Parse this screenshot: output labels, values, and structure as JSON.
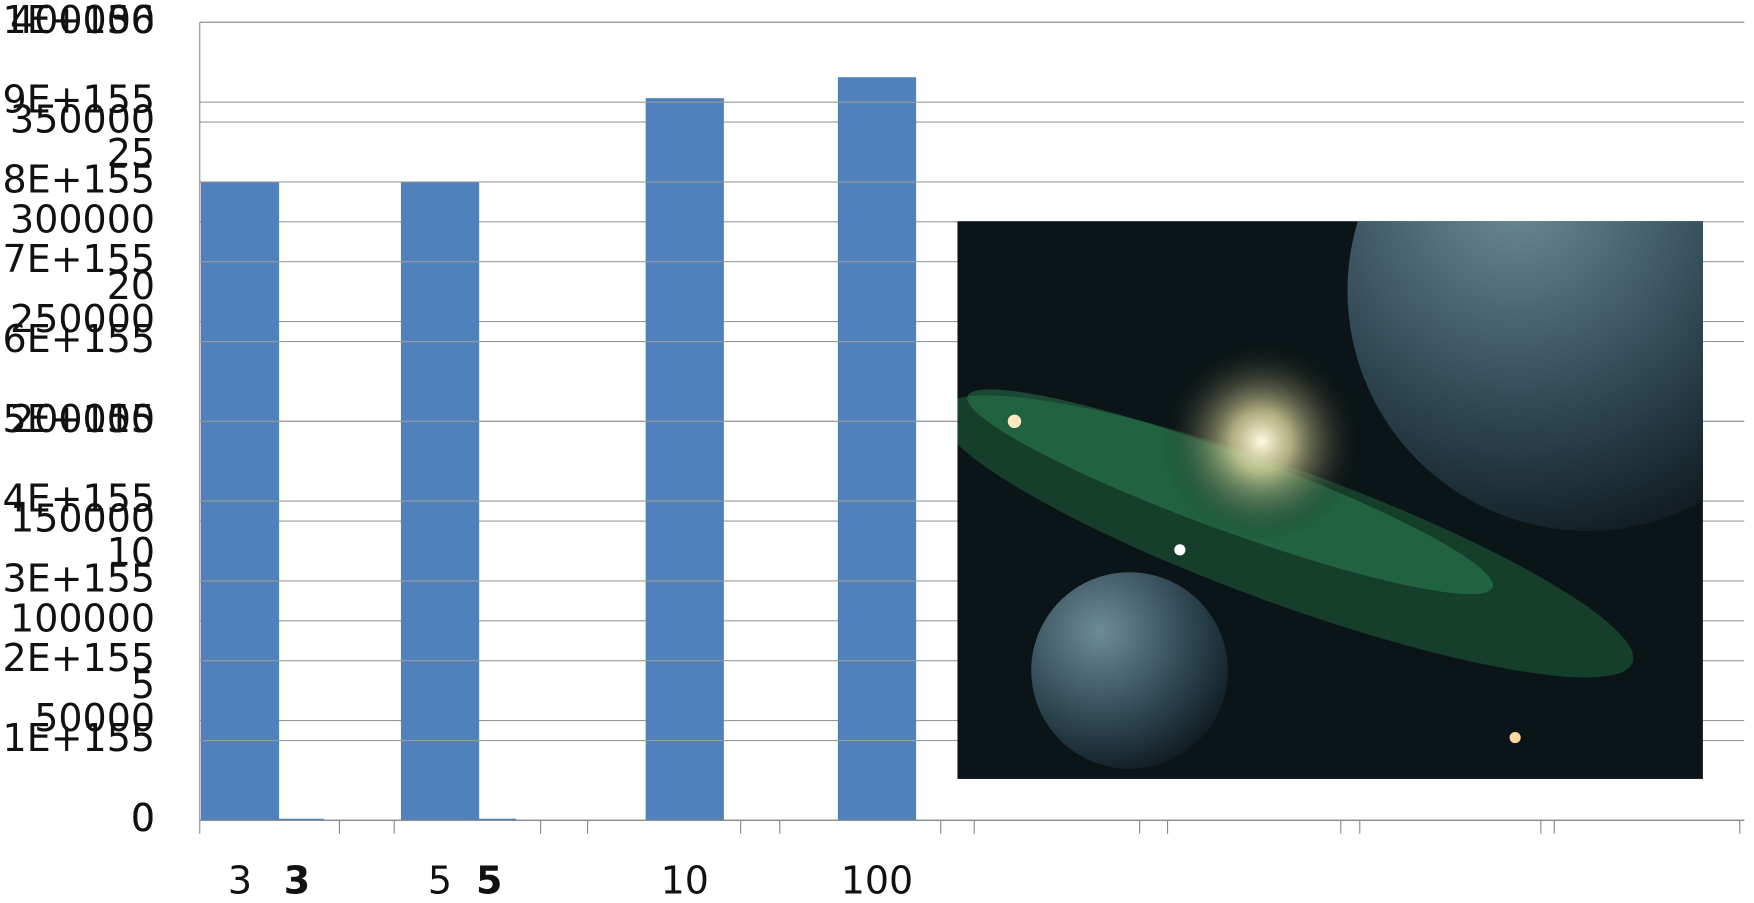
{
  "chart_data": [
    {
      "type": "bar",
      "color": "#4f81bd",
      "categories": [
        "3",
        "5",
        "10",
        "100"
      ],
      "values": [
        320000,
        320000,
        362000,
        372500
      ],
      "ylim": [
        0,
        400000
      ],
      "yticks": [
        0,
        50000,
        100000,
        150000,
        200000,
        250000,
        300000,
        350000,
        400000
      ],
      "grid": true
    },
    {
      "type": "bar",
      "color": "#4f81bd",
      "categories": [
        "3",
        "5"
      ],
      "values": [
        2e+153,
        2e+153
      ],
      "ylim": [
        0,
        1e+156
      ],
      "yticks": [
        0,
        {
          "value": 1e+155,
          "label": "1E+155"
        },
        {
          "value": 2e+155,
          "label": "2E+155"
        },
        {
          "value": 3e+155,
          "label": "3E+155"
        },
        {
          "value": 4e+155,
          "label": "4E+155"
        },
        {
          "value": 5e+155,
          "label": "5E+155"
        },
        {
          "value": 6e+155,
          "label": "6E+155"
        },
        {
          "value": 7e+155,
          "label": "7E+155"
        },
        {
          "value": 8e+155,
          "label": "8E+155"
        },
        {
          "value": 9e+155,
          "label": "9E+155"
        },
        {
          "value": 1e+156,
          "label": "1E+156"
        }
      ],
      "grid": true
    },
    {
      "type": "axis",
      "ylim": [
        0,
        30
      ],
      "yticks": [
        0,
        5,
        10,
        15,
        20,
        25,
        30
      ],
      "grid": false
    }
  ]
}
